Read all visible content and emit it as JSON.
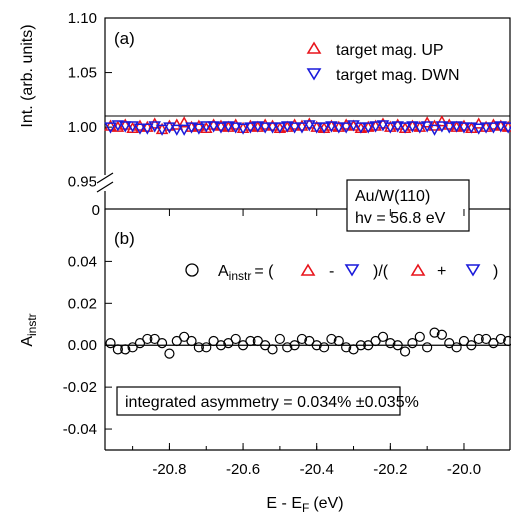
{
  "chart_data": [
    {
      "panel": "(a)",
      "type": "scatter",
      "ylabel": "Int. (arb. units)",
      "ylim": [
        0.925,
        1.1
      ],
      "y_ticks": [
        "0.95",
        "1.00",
        "1.05",
        "1.10"
      ],
      "axis_break_label": "0",
      "xlim": [
        -20.975,
        -19.875
      ],
      "series": [
        {
          "name": "target mag. UP",
          "marker": "triangle-up",
          "color": "#e8141b",
          "x": [
            -20.96,
            -20.94,
            -20.92,
            -20.9,
            -20.88,
            -20.86,
            -20.84,
            -20.82,
            -20.8,
            -20.78,
            -20.76,
            -20.74,
            -20.72,
            -20.7,
            -20.68,
            -20.66,
            -20.64,
            -20.62,
            -20.6,
            -20.58,
            -20.56,
            -20.54,
            -20.52,
            -20.5,
            -20.48,
            -20.46,
            -20.44,
            -20.42,
            -20.4,
            -20.38,
            -20.36,
            -20.34,
            -20.32,
            -20.3,
            -20.28,
            -20.26,
            -20.24,
            -20.22,
            -20.2,
            -20.18,
            -20.16,
            -20.14,
            -20.12,
            -20.1,
            -20.08,
            -20.06,
            -20.04,
            -20.02,
            -20.0,
            -19.98,
            -19.96,
            -19.94,
            -19.92,
            -19.9,
            -19.88
          ],
          "y": [
            1.001,
            1.0,
            1.002,
            0.999,
            1.001,
            1.0,
            1.003,
            0.998,
            1.001,
            1.002,
            1.004,
            1.0,
            1.001,
            0.999,
            1.002,
            1.001,
            1.0,
            1.002,
            0.999,
            1.001,
            1.0,
            1.002,
            1.001,
            0.999,
            1.0,
            1.002,
            1.001,
            1.003,
            1.0,
            0.999,
            1.001,
            1.0,
            1.002,
            1.001,
            0.999,
            1.0,
            1.001,
            1.003,
            1.0,
            1.002,
            0.999,
            1.001,
            1.0,
            1.004,
            1.001,
            1.005,
            1.002,
            1.0,
            1.001,
            0.999,
            1.003,
            1.0,
            1.002,
            1.001,
            1.0
          ]
        },
        {
          "name": "target mag. DWN",
          "marker": "triangle-down",
          "color": "#1a1adb",
          "x": [
            -20.96,
            -20.94,
            -20.92,
            -20.9,
            -20.88,
            -20.86,
            -20.84,
            -20.82,
            -20.8,
            -20.78,
            -20.76,
            -20.74,
            -20.72,
            -20.7,
            -20.68,
            -20.66,
            -20.64,
            -20.62,
            -20.6,
            -20.58,
            -20.56,
            -20.54,
            -20.52,
            -20.5,
            -20.48,
            -20.46,
            -20.44,
            -20.42,
            -20.4,
            -20.38,
            -20.36,
            -20.34,
            -20.32,
            -20.3,
            -20.28,
            -20.26,
            -20.24,
            -20.22,
            -20.2,
            -20.18,
            -20.16,
            -20.14,
            -20.12,
            -20.1,
            -20.08,
            -20.06,
            -20.04,
            -20.02,
            -20.0,
            -19.98,
            -19.96,
            -19.94,
            -19.92,
            -19.9,
            -19.88
          ],
          "y": [
            1.0,
            1.002,
            1.001,
            1.001,
            0.999,
            0.999,
            1.001,
            0.998,
            1.0,
            0.998,
            0.998,
            1.0,
            0.999,
            1.001,
            1.001,
            1.0,
            1.001,
            1.0,
            0.999,
            1.0,
            1.001,
            1.0,
            1.0,
            1.0,
            1.001,
            1.0,
            1.0,
            1.002,
            1.0,
            1.0,
            1.001,
            1.0,
            1.0,
            1.002,
            1.0,
            1.0,
            1.001,
            1.002,
            1.0,
            1.001,
            1.0,
            1.001,
            1.0,
            1.001,
            0.998,
            1.001,
            1.0,
            1.001,
            1.0,
            1.0,
            0.999,
            1.0,
            1.0,
            1.001,
            1.0
          ]
        }
      ],
      "annotations": [
        "Au/W(110)",
        "hv = 56.8 eV"
      ]
    },
    {
      "panel": "(b)",
      "type": "scatter",
      "ylabel": "A",
      "ylabel_sub": "instr",
      "xlabel": "E - E",
      "xlabel_sub": "F",
      "xlabel_unit": "(eV)",
      "xlim": [
        -20.975,
        -19.875
      ],
      "ylim": [
        -0.05,
        0.065
      ],
      "x_ticks": [
        "-20.8",
        "-20.6",
        "-20.4",
        "-20.2",
        "-20.0"
      ],
      "x_tick_values": [
        -20.8,
        -20.6,
        -20.4,
        -20.2,
        -20.0
      ],
      "y_ticks": [
        "0.04",
        "0.02",
        "0.00",
        "-0.02",
        "-0.04"
      ],
      "y_tick_values": [
        0.04,
        0.02,
        0.0,
        -0.02,
        -0.04
      ],
      "legend": {
        "A": "A",
        "sub": "instr",
        "eq": "= (",
        "minus": "-",
        "mid": ")/(",
        "plus": "+",
        "close": ")"
      },
      "series": [
        {
          "marker": "circle-open",
          "color": "#000000",
          "x": [
            -20.96,
            -20.94,
            -20.92,
            -20.9,
            -20.88,
            -20.86,
            -20.84,
            -20.82,
            -20.8,
            -20.78,
            -20.76,
            -20.74,
            -20.72,
            -20.7,
            -20.68,
            -20.66,
            -20.64,
            -20.62,
            -20.6,
            -20.58,
            -20.56,
            -20.54,
            -20.52,
            -20.5,
            -20.48,
            -20.46,
            -20.44,
            -20.42,
            -20.4,
            -20.38,
            -20.36,
            -20.34,
            -20.32,
            -20.3,
            -20.28,
            -20.26,
            -20.24,
            -20.22,
            -20.2,
            -20.18,
            -20.16,
            -20.14,
            -20.12,
            -20.1,
            -20.08,
            -20.06,
            -20.04,
            -20.02,
            -20.0,
            -19.98,
            -19.96,
            -19.94,
            -19.92,
            -19.9,
            -19.88
          ],
          "y": [
            0.001,
            -0.002,
            -0.002,
            -0.001,
            0.001,
            0.003,
            0.003,
            0.001,
            -0.004,
            0.002,
            0.004,
            0.002,
            -0.001,
            -0.001,
            0.002,
            0.0,
            0.001,
            0.003,
            0.0,
            0.002,
            0.002,
            0.0,
            -0.002,
            0.003,
            -0.001,
            0.0,
            0.003,
            0.002,
            0.0,
            -0.001,
            0.003,
            0.002,
            -0.001,
            -0.002,
            0.0,
            0.0,
            0.002,
            0.004,
            0.001,
            0.0,
            -0.003,
            0.001,
            0.004,
            -0.001,
            0.006,
            0.005,
            0.001,
            -0.001,
            0.002,
            0.0,
            0.003,
            0.003,
            0.001,
            0.003,
            0.002
          ]
        }
      ],
      "integrated_text": "integrated asymmetry = 0.034% ±0.035%"
    }
  ]
}
